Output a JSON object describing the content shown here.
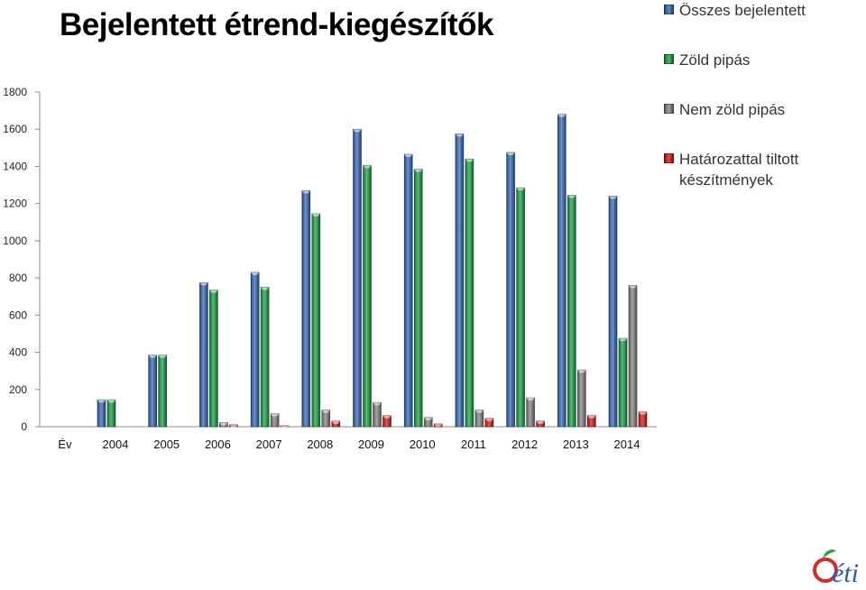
{
  "title": "Bejelentett étrend-kiegészítők",
  "chart_data": {
    "type": "bar",
    "categories": [
      "2004",
      "2005",
      "2006",
      "2007",
      "2008",
      "2009",
      "2010",
      "2011",
      "2012",
      "2013",
      "2014"
    ],
    "xlabel": "Év",
    "ylabel": "",
    "ylim": [
      0,
      1800
    ],
    "yticks": [
      0,
      200,
      400,
      600,
      800,
      1000,
      1200,
      1400,
      1600,
      1800
    ],
    "grid": false,
    "legend_position": "top-right",
    "series": [
      {
        "name": "Összes bejelentett",
        "color": "#3a6fbf",
        "values": [
          145,
          385,
          775,
          830,
          1270,
          1600,
          1465,
          1575,
          1475,
          1680,
          1240
        ]
      },
      {
        "name": "Zöld pipás",
        "color": "#1ea84a",
        "values": [
          145,
          385,
          735,
          750,
          1145,
          1405,
          1385,
          1440,
          1285,
          1245,
          475
        ]
      },
      {
        "name": "Nem zöld pipás",
        "color": "#8a8a8a",
        "values": [
          0,
          0,
          22,
          70,
          90,
          130,
          50,
          90,
          155,
          305,
          760
        ]
      },
      {
        "name": "Határozattal tiltott készítmények",
        "color": "#e01b1b",
        "values": [
          0,
          0,
          10,
          5,
          30,
          60,
          15,
          45,
          30,
          60,
          80
        ]
      }
    ]
  },
  "logo": {
    "text": "éti",
    "colors": {
      "leaf": "#3aa040",
      "apple": "#d62a2a",
      "text": "#2b5fa8"
    }
  }
}
